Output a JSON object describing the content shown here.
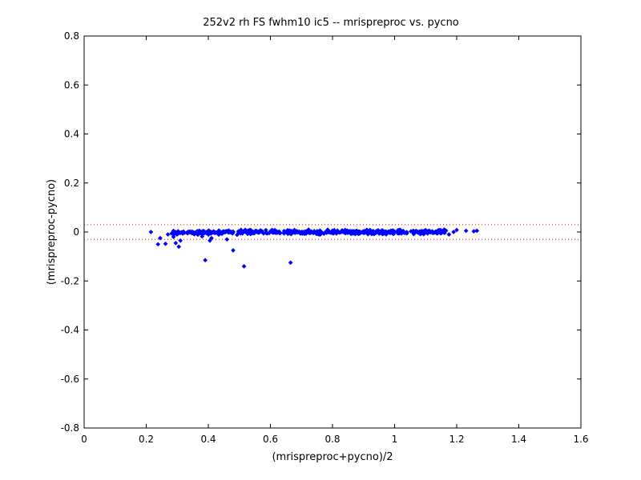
{
  "chart_data": {
    "type": "scatter",
    "title": "252v2 rh FS fwhm10 ic5 -- mrispreproc vs. pycno",
    "xlabel": "(mrispreproc+pycno)/2",
    "ylabel": "(mrispreproc-pycno)",
    "xlim": [
      0,
      1.6
    ],
    "ylim": [
      -0.8,
      0.8
    ],
    "grid": false,
    "xticks": [
      "0",
      "0.2",
      "0.4",
      "0.6",
      "0.8",
      "1",
      "1.2",
      "1.4",
      "1.6"
    ],
    "yticks": [
      "0.8",
      "0.6",
      "0.4",
      "0.2",
      "0",
      "-0.2",
      "-0.4",
      "-0.6",
      "-0.8"
    ],
    "reference_lines": [
      0.03,
      -0.03
    ],
    "reference_line_color": "#ff0000",
    "marker_color": "#0000ff",
    "series": [
      {
        "marker": "diamond",
        "outliers": [
          [
            0.215,
            0.0
          ],
          [
            0.238,
            -0.05
          ],
          [
            0.245,
            -0.025
          ],
          [
            0.262,
            -0.048
          ],
          [
            0.27,
            -0.01
          ],
          [
            0.288,
            -0.02
          ],
          [
            0.295,
            -0.045
          ],
          [
            0.305,
            -0.06
          ],
          [
            0.31,
            -0.035
          ],
          [
            0.38,
            -0.018
          ],
          [
            0.39,
            -0.115
          ],
          [
            0.405,
            -0.035
          ],
          [
            0.41,
            -0.025
          ],
          [
            0.46,
            -0.03
          ],
          [
            0.48,
            -0.075
          ],
          [
            0.515,
            -0.14
          ],
          [
            0.665,
            -0.125
          ],
          [
            1.1,
            0.008
          ],
          [
            1.16,
            0.01
          ],
          [
            1.175,
            -0.01
          ],
          [
            1.19,
            0.0
          ],
          [
            1.2,
            0.008
          ],
          [
            1.23,
            0.005
          ],
          [
            1.255,
            0.003
          ],
          [
            1.265,
            0.005
          ]
        ],
        "band": {
          "x_start": 0.28,
          "x_end": 1.17,
          "count": 520,
          "y_center": 0.0,
          "y_spread": 0.012
        }
      }
    ]
  }
}
